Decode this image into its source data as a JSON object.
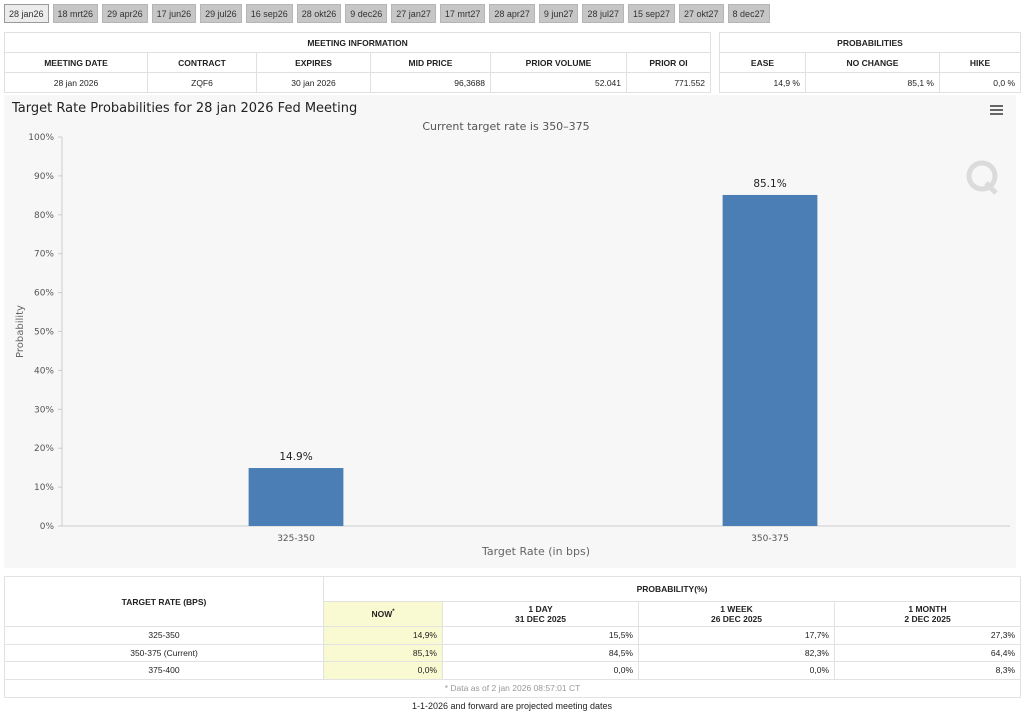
{
  "tabs": [
    "28 jan26",
    "18 mrt26",
    "29 apr26",
    "17 jun26",
    "29 jul26",
    "16 sep26",
    "28 okt26",
    "9 dec26",
    "27 jan27",
    "17 mrt27",
    "28 apr27",
    "9 jun27",
    "28 jul27",
    "15 sep27",
    "27 okt27",
    "8 dec27"
  ],
  "meeting_table": {
    "title": "MEETING INFORMATION",
    "headers": [
      "MEETING DATE",
      "CONTRACT",
      "EXPIRES",
      "MID PRICE",
      "PRIOR VOLUME",
      "PRIOR OI"
    ],
    "row": [
      "28 jan 2026",
      "ZQF6",
      "30 jan 2026",
      "96,3688",
      "52.041",
      "771.552"
    ]
  },
  "prob_table": {
    "title": "PROBABILITIES",
    "headers": [
      "EASE",
      "NO CHANGE",
      "HIKE"
    ],
    "row": [
      "14,9 %",
      "85,1 %",
      "0,0 %"
    ]
  },
  "chart_data": {
    "type": "bar",
    "title": "Target Rate Probabilities for 28 jan 2026 Fed Meeting",
    "subtitle": "Current target rate is 350–375",
    "x_label": "Target Rate (in bps)",
    "y_label": "Probability",
    "categories": [
      "325-350",
      "350-375"
    ],
    "values": [
      14.9,
      85.1
    ],
    "value_labels": [
      "14.9%",
      "85.1%"
    ],
    "color": "#4a7eb4",
    "ylim": [
      0,
      100
    ],
    "yticks": [
      {
        "value": 0,
        "label": "0%"
      },
      {
        "value": 10,
        "label": "10%"
      },
      {
        "value": 20,
        "label": "20%"
      },
      {
        "value": 30,
        "label": "30%"
      },
      {
        "value": 40,
        "label": "40%"
      },
      {
        "value": 50,
        "label": "50%"
      },
      {
        "value": 60,
        "label": "60%"
      },
      {
        "value": 70,
        "label": "70%"
      },
      {
        "value": 80,
        "label": "80%"
      },
      {
        "value": 90,
        "label": "90%"
      },
      {
        "value": 100,
        "label": "100%"
      }
    ],
    "grid": false
  },
  "bottom_table": {
    "row_header": "TARGET RATE (BPS)",
    "group_header": "PROBABILITY(%)",
    "columns": [
      {
        "label": "NOW",
        "note": "*"
      },
      {
        "label": "1 DAY",
        "date": "31 DEC 2025"
      },
      {
        "label": "1 WEEK",
        "date": "26 DEC 2025"
      },
      {
        "label": "1 MONTH",
        "date": "2 DEC 2025"
      }
    ],
    "rows": [
      [
        "325-350",
        "14,9%",
        "15,5%",
        "17,7%",
        "27,3%"
      ],
      [
        "350-375 (Current)",
        "85,1%",
        "84,5%",
        "82,3%",
        "64,4%"
      ],
      [
        "375-400",
        "0,0%",
        "0,0%",
        "0,0%",
        "8,3%"
      ]
    ],
    "footnote": "* Data as of 2 jan 2026 08:57:01 CT"
  },
  "footer": "1-1-2026 and forward are projected meeting dates"
}
